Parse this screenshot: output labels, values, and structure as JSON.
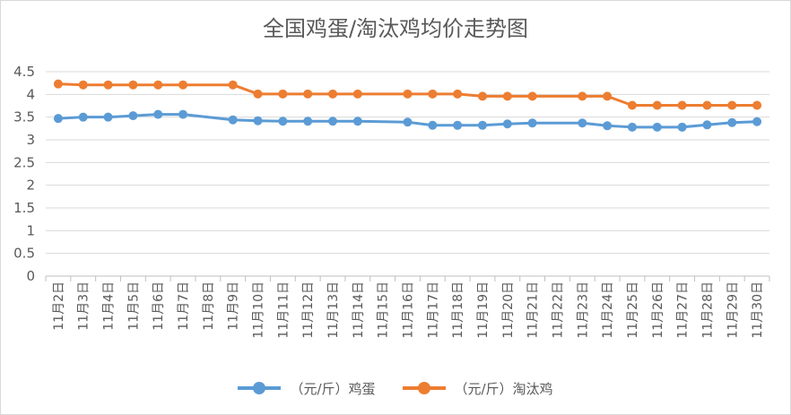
{
  "chart_data": {
    "type": "line",
    "title": "全国鸡蛋/淘汰鸡均价走势图",
    "xlabel": "",
    "ylabel": "",
    "ylim": [
      0,
      4.5
    ],
    "yticks": [
      "0",
      "0.5",
      "1",
      "1.5",
      "2",
      "2.5",
      "3",
      "3.5",
      "4",
      "4.5"
    ],
    "grid": true,
    "legend_position": "bottom",
    "categories": [
      "11月2日",
      "11月3日",
      "11月4日",
      "11月5日",
      "11月6日",
      "11月7日",
      "11月8日",
      "11月9日",
      "11月10日",
      "11月11日",
      "11月12日",
      "11月13日",
      "11月14日",
      "11月15日",
      "11月16日",
      "11月17日",
      "11月18日",
      "11月19日",
      "11月20日",
      "11月21日",
      "11月22日",
      "11月23日",
      "11月24日",
      "11月25日",
      "11月26日",
      "11月27日",
      "11月28日",
      "11月29日",
      "11月30日"
    ],
    "series": [
      {
        "name": "（元/斤）鸡蛋",
        "color": "#5b9bd5",
        "values": [
          3.47,
          3.5,
          3.5,
          3.53,
          3.56,
          3.56,
          null,
          3.44,
          3.42,
          3.41,
          3.41,
          3.41,
          3.41,
          null,
          3.39,
          3.32,
          3.32,
          3.32,
          3.35,
          3.37,
          null,
          3.37,
          3.31,
          3.28,
          3.28,
          3.28,
          3.33,
          3.38,
          3.4
        ]
      },
      {
        "name": "（元/斤）淘汰鸡",
        "color": "#ed7d31",
        "values": [
          4.23,
          4.21,
          4.21,
          4.21,
          4.21,
          4.21,
          null,
          4.21,
          4.01,
          4.01,
          4.01,
          4.01,
          4.01,
          null,
          4.01,
          4.01,
          4.01,
          3.96,
          3.96,
          3.96,
          null,
          3.96,
          3.96,
          3.76,
          3.76,
          3.76,
          3.76,
          3.76,
          3.76
        ]
      }
    ]
  }
}
